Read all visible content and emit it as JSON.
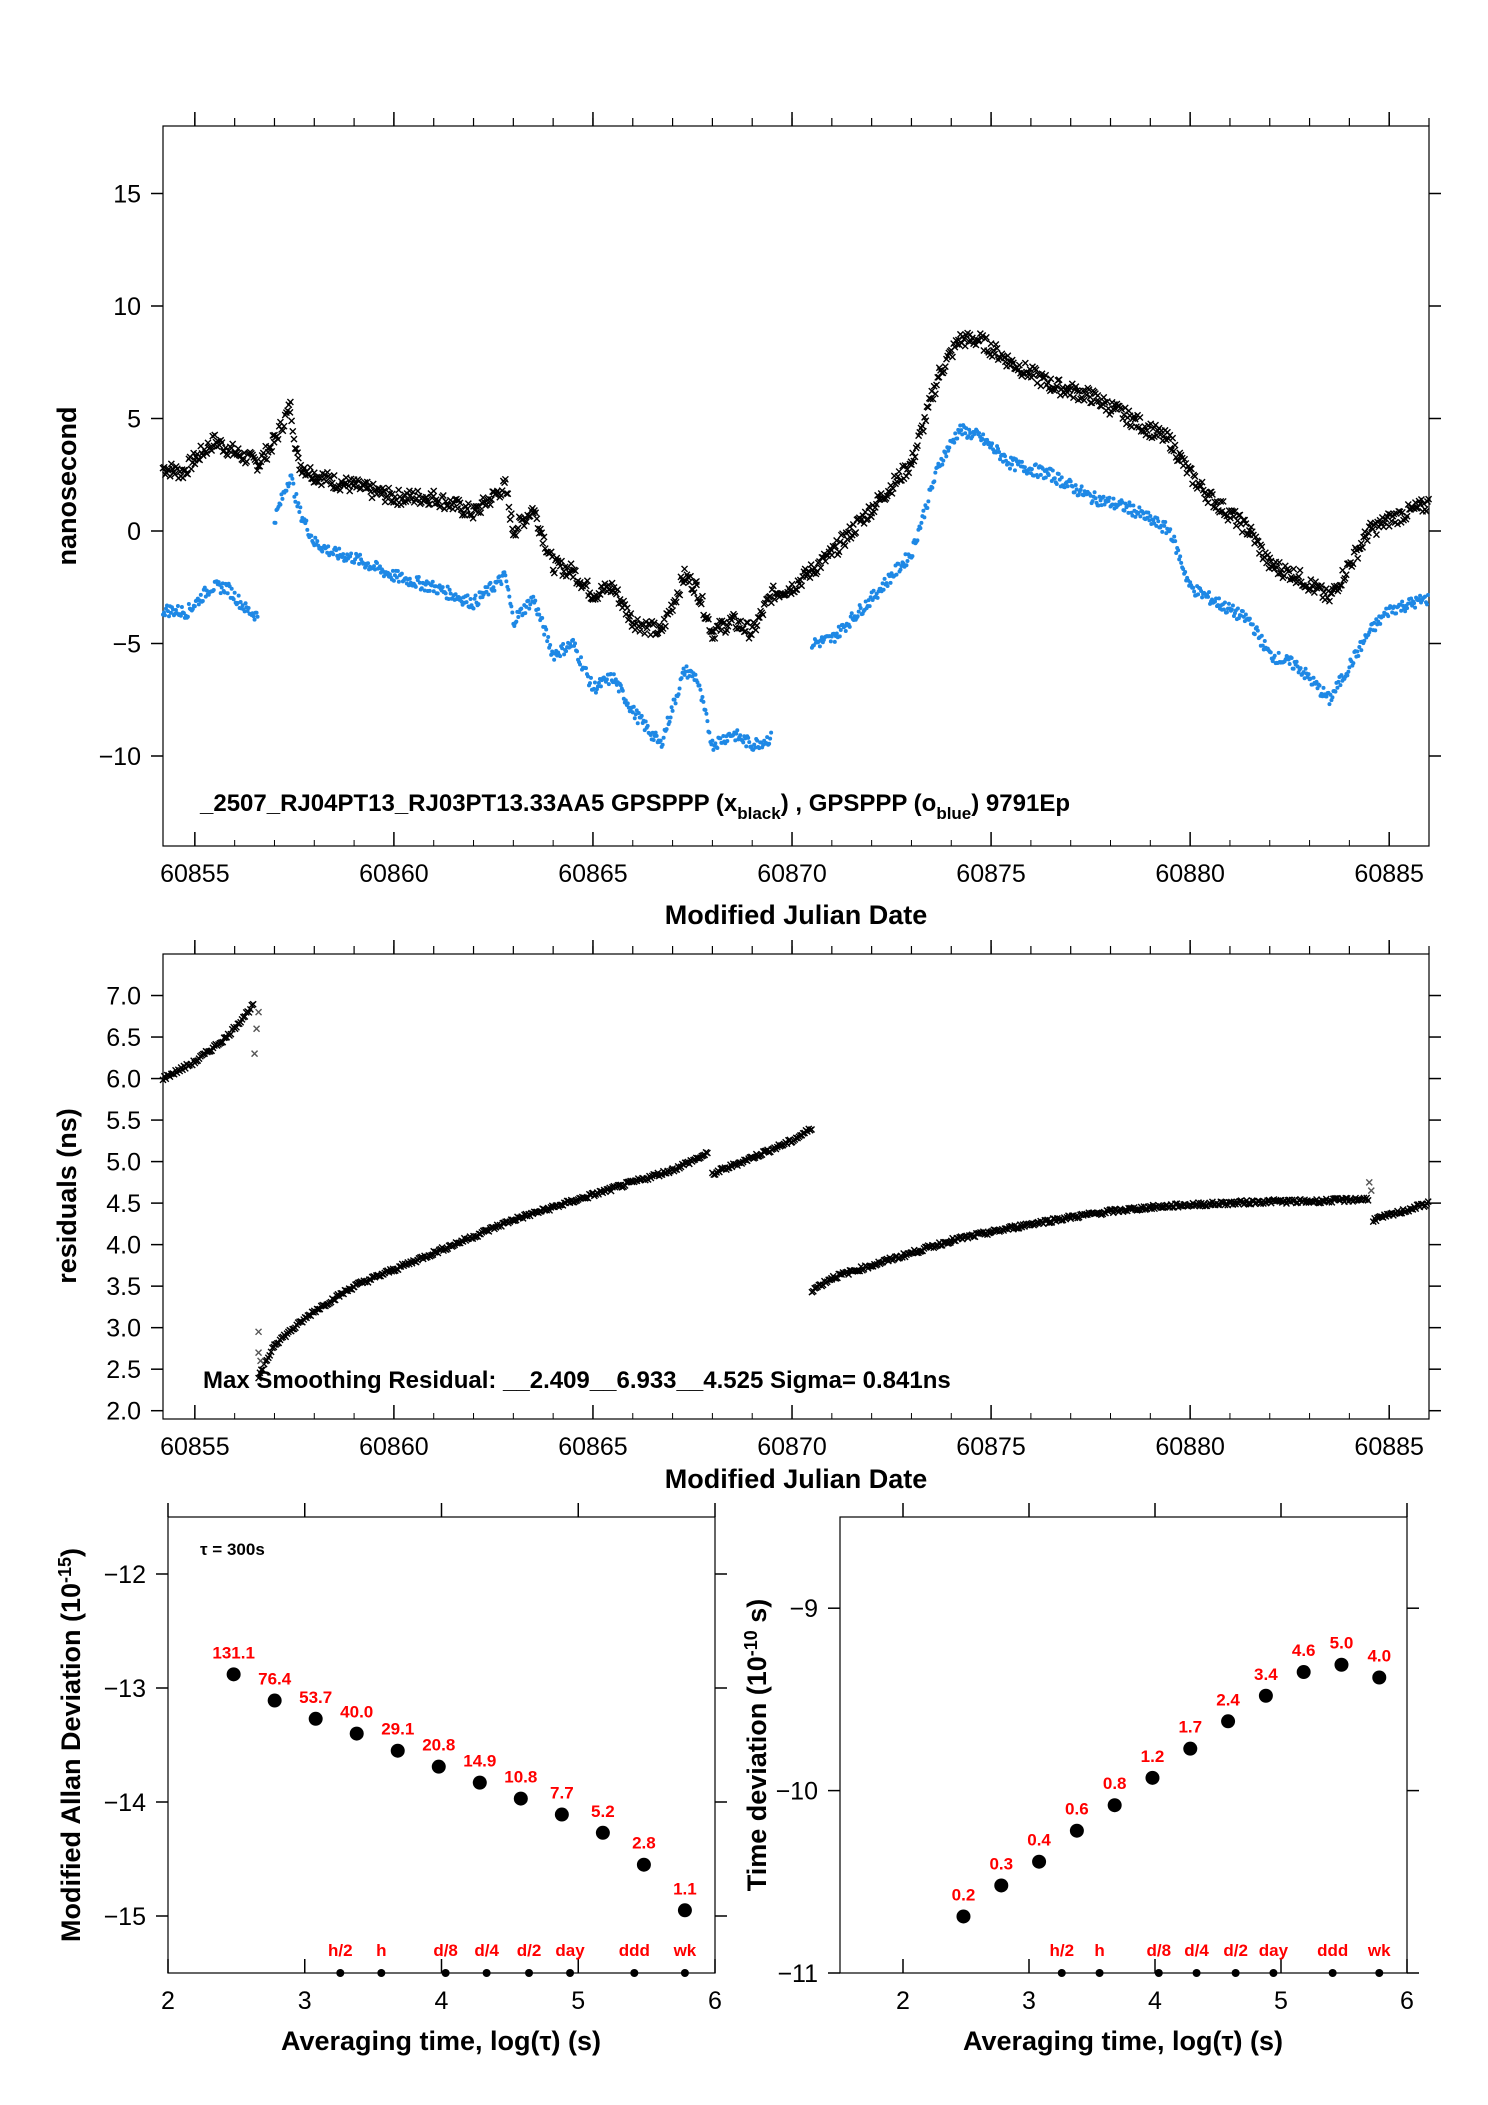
{
  "colors": {
    "black_series": "#000000",
    "blue_series": "#1e88e5",
    "label_red": "#ff0000"
  },
  "chart_data": [
    {
      "type": "scatter",
      "xlabel": "Modified Julian Date",
      "ylabel": "nanosecond",
      "xlim": [
        60854.2,
        60886.0
      ],
      "ylim": [
        -14,
        18
      ],
      "xticks": [
        60855,
        60860,
        60865,
        60870,
        60875,
        60880,
        60885
      ],
      "yticks": [
        -10,
        -5,
        0,
        5,
        10,
        15
      ],
      "annotation": {
        "pre": "_2507_RJ04PT13_RJ03PT13.33AA5     GPSPPP (x",
        "sub1": "black",
        "mid": ") ,  GPSPPP (o",
        "sub2": "blue",
        "post": ")  9791Ep"
      },
      "series": [
        {
          "marker": "x",
          "color": "#000000",
          "x": [
            60854.2,
            60854.7,
            60855.0,
            60855.5,
            60856.0,
            60856.6,
            60857.0,
            60857.4,
            60857.6,
            60858.0,
            60858.5,
            60859.0,
            60860.0,
            60861.0,
            60862.0,
            60862.8,
            60863.0,
            60863.5,
            60864.0,
            60864.5,
            60865.0,
            60865.5,
            60866.0,
            60866.7,
            60867.3,
            60867.6,
            60868.0,
            60868.5,
            60869.0,
            60869.5,
            60870.0,
            60871.0,
            60872.0,
            60873.0,
            60873.7,
            60874.2,
            60874.7,
            60875.5,
            60876.5,
            60877.5,
            60878.5,
            60879.5,
            60880.0,
            60880.5,
            60881.5,
            60882.0,
            60882.7,
            60883.5,
            60884.0,
            60884.5,
            60885.0,
            60886.0
          ],
          "y": [
            2.8,
            2.6,
            3.2,
            4.0,
            3.5,
            3.0,
            4.0,
            5.5,
            3.0,
            2.5,
            2.2,
            2.0,
            1.5,
            1.5,
            0.8,
            2.0,
            0.0,
            1.0,
            -1.5,
            -1.8,
            -2.8,
            -2.5,
            -4.0,
            -4.5,
            -2.0,
            -2.5,
            -4.5,
            -4.0,
            -4.5,
            -2.8,
            -2.5,
            -1.0,
            1.0,
            3.0,
            7.0,
            8.5,
            8.5,
            7.5,
            6.5,
            6.0,
            5.0,
            4.0,
            2.5,
            1.5,
            0.0,
            -1.5,
            -2.0,
            -3.0,
            -1.5,
            0.0,
            0.5,
            1.2
          ]
        },
        {
          "marker": "o",
          "color": "#1e88e5",
          "segments": [
            {
              "x": [
                60854.2,
                60854.8,
                60855.4,
                60855.8,
                60856.3,
                60856.6
              ],
              "y": [
                -3.5,
                -3.6,
                -2.5,
                -2.5,
                -3.5,
                -3.8
              ]
            },
            {
              "x": [
                60857.0,
                60857.4,
                60857.6,
                60858.0,
                60858.5,
                60859.0,
                60860.0,
                60861.0,
                60862.0,
                60862.8,
                60863.0,
                60863.5,
                60864.0,
                60864.5,
                60865.0,
                60865.5,
                60866.0,
                60866.7,
                60867.3,
                60867.6,
                60868.0,
                60868.5,
                60869.0,
                60869.5
              ],
              "y": [
                0.5,
                2.5,
                1.0,
                -0.5,
                -1.0,
                -1.2,
                -2.0,
                -2.5,
                -3.2,
                -2.0,
                -4.0,
                -3.0,
                -5.5,
                -5.0,
                -7.0,
                -6.5,
                -8.0,
                -9.5,
                -6.2,
                -6.5,
                -9.5,
                -9.0,
                -9.5,
                -9.2
              ]
            },
            {
              "x": [
                60870.5,
                60871.0,
                60872.0,
                60873.0,
                60873.7,
                60874.2,
                60874.7,
                60875.5,
                60876.5,
                60877.5,
                60878.5,
                60879.5,
                60880.0,
                60880.5,
                60881.5,
                60882.0,
                60882.7,
                60883.5,
                60884.0,
                60884.5,
                60885.0,
                60886.0
              ],
              "y": [
                -5.0,
                -4.8,
                -3.0,
                -1.0,
                3.0,
                4.5,
                4.2,
                3.0,
                2.5,
                1.5,
                1.0,
                0.0,
                -2.5,
                -3.0,
                -4.0,
                -5.5,
                -6.0,
                -7.5,
                -6.0,
                -4.5,
                -3.5,
                -3.0
              ]
            }
          ]
        }
      ]
    },
    {
      "type": "scatter",
      "xlabel": "Modified Julian Date",
      "ylabel": "residuals (ns)",
      "xlim": [
        60854.2,
        60886.0
      ],
      "ylim": [
        1.9,
        7.5
      ],
      "xticks": [
        60855,
        60860,
        60865,
        60870,
        60875,
        60880,
        60885
      ],
      "yticks": [
        2.0,
        2.5,
        3.0,
        3.5,
        4.0,
        4.5,
        5.0,
        5.5,
        6.0,
        6.5,
        7.0
      ],
      "annotation": "Max Smoothing Residual: __2.409__6.933__4.525  Sigma= 0.841ns",
      "segments": [
        {
          "x": [
            60854.2,
            60855.0,
            60855.8,
            60856.5
          ],
          "y": [
            6.0,
            6.2,
            6.5,
            6.9
          ]
        },
        {
          "x": [
            60856.6,
            60857.0,
            60858.0,
            60859.0,
            60860.0,
            60861.0,
            60862.0,
            60863.0,
            60864.0,
            60865.0,
            60866.0,
            60867.0,
            60867.9
          ],
          "y": [
            2.4,
            2.8,
            3.2,
            3.5,
            3.7,
            3.9,
            4.1,
            4.3,
            4.45,
            4.6,
            4.75,
            4.9,
            5.1
          ]
        },
        {
          "x": [
            60868.0,
            60869.0,
            60870.0,
            60870.5
          ],
          "y": [
            4.85,
            5.05,
            5.25,
            5.4
          ]
        },
        {
          "x": [
            60870.5,
            60871.0,
            60872.0,
            60873.0,
            60874.0,
            60875.0,
            60876.0,
            60877.0,
            60878.0,
            60879.0,
            60880.0,
            60881.0,
            60882.0,
            60883.0,
            60884.5
          ],
          "y": [
            3.45,
            3.6,
            3.75,
            3.9,
            4.05,
            4.15,
            4.25,
            4.33,
            4.4,
            4.45,
            4.48,
            4.5,
            4.52,
            4.52,
            4.55
          ]
        },
        {
          "x": [
            60884.6,
            60885.0,
            60886.0
          ],
          "y": [
            4.3,
            4.35,
            4.5
          ]
        }
      ],
      "outliers": {
        "x": [
          60856.5,
          60856.55,
          60856.6,
          60856.6,
          60856.65,
          60856.6,
          60884.5,
          60884.55
        ],
        "y": [
          6.3,
          6.6,
          6.8,
          2.7,
          2.6,
          2.95,
          4.75,
          4.65
        ]
      }
    },
    {
      "type": "scatter",
      "xlabel": "Averaging time, log(τ) (s)",
      "ylabel": "Modified Allan Deviation (10-15)",
      "xlim": [
        2,
        6
      ],
      "ylim": [
        -15.5,
        -11.5
      ],
      "xticks": [
        2,
        3,
        4,
        5,
        6
      ],
      "yticks": [
        -15,
        -14,
        -13,
        -12
      ],
      "tau_note": "τ = 300s",
      "x": [
        2.48,
        2.78,
        3.08,
        3.38,
        3.68,
        3.98,
        4.28,
        4.58,
        4.88,
        5.18,
        5.48,
        5.78
      ],
      "y": [
        -12.88,
        -13.11,
        -13.27,
        -13.4,
        -13.55,
        -13.69,
        -13.83,
        -13.97,
        -14.11,
        -14.27,
        -14.55,
        -14.95
      ],
      "point_labels": [
        "131.1",
        "76.4",
        "53.7",
        "40.0",
        "29.1",
        "20.8",
        "14.9",
        "10.8",
        "7.7",
        "5.2",
        "2.8",
        "1.1"
      ],
      "markers": {
        "labels": [
          "h/2",
          "h",
          "d/8",
          "d/4",
          "d/2",
          "day",
          "ddd",
          "wk"
        ],
        "x": [
          3.26,
          3.56,
          4.03,
          4.33,
          4.64,
          4.94,
          5.41,
          5.78
        ]
      }
    },
    {
      "type": "scatter",
      "xlabel": "Averaging time, log(τ) (s)",
      "ylabel": "Time deviation (10-10 s)",
      "xlim": [
        1.5,
        6
      ],
      "ylim": [
        -11,
        -8.5
      ],
      "xticks": [
        2,
        3,
        4,
        5,
        6
      ],
      "yticks": [
        -11,
        -10,
        -9
      ],
      "x": [
        2.48,
        2.78,
        3.08,
        3.38,
        3.68,
        3.98,
        4.28,
        4.58,
        4.88,
        5.18,
        5.48,
        5.78
      ],
      "y": [
        -10.69,
        -10.52,
        -10.39,
        -10.22,
        -10.08,
        -9.93,
        -9.77,
        -9.62,
        -9.48,
        -9.35,
        -9.31,
        -9.38
      ],
      "point_labels": [
        "0.2",
        "0.3",
        "0.4",
        "0.6",
        "0.8",
        "1.2",
        "1.7",
        "2.4",
        "3.4",
        "4.6",
        "5.0",
        "4.0"
      ],
      "markers": {
        "labels": [
          "h/2",
          "h",
          "d/8",
          "d/4",
          "d/2",
          "day",
          "ddd",
          "wk"
        ],
        "x": [
          3.26,
          3.56,
          4.03,
          4.33,
          4.64,
          4.94,
          5.41,
          5.78
        ]
      }
    }
  ]
}
